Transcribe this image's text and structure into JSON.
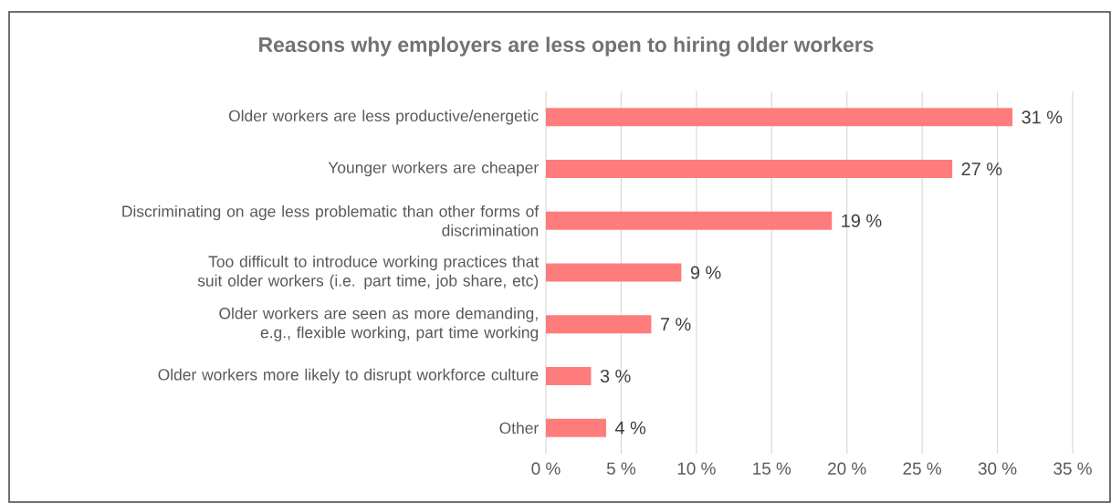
{
  "chart_data": {
    "type": "bar",
    "orientation": "horizontal",
    "title": "Reasons why employers are less open to hiring older workers",
    "categories": [
      "Older workers are less productive/energetic",
      "Younger workers are cheaper",
      "Discriminating on age less problematic than other forms of discrimination",
      "Too difficult to introduce working practices that suit older workers (i.e. part time, job share, etc)",
      "Older workers are seen as more demanding, e.g., flexible working, part time working",
      "Older workers more likely to disrupt workforce culture",
      "Other"
    ],
    "values": [
      31,
      27,
      19,
      9,
      7,
      3,
      4
    ],
    "value_labels": [
      "31 %",
      "27 %",
      "19 %",
      "9 %",
      "7 %",
      "3 %",
      "4 %"
    ],
    "color": "#ff7c7c",
    "xlim": [
      0,
      35
    ],
    "xticks": [
      {
        "value": 0,
        "label": "0 %"
      },
      {
        "value": 5,
        "label": "5 %"
      },
      {
        "value": 10,
        "label": "10 %"
      },
      {
        "value": 15,
        "label": "15 %"
      },
      {
        "value": 20,
        "label": "20 %"
      },
      {
        "value": 25,
        "label": "25 %"
      },
      {
        "value": 30,
        "label": "30 %"
      },
      {
        "value": 35,
        "label": "35 %"
      }
    ],
    "grid": "x"
  }
}
